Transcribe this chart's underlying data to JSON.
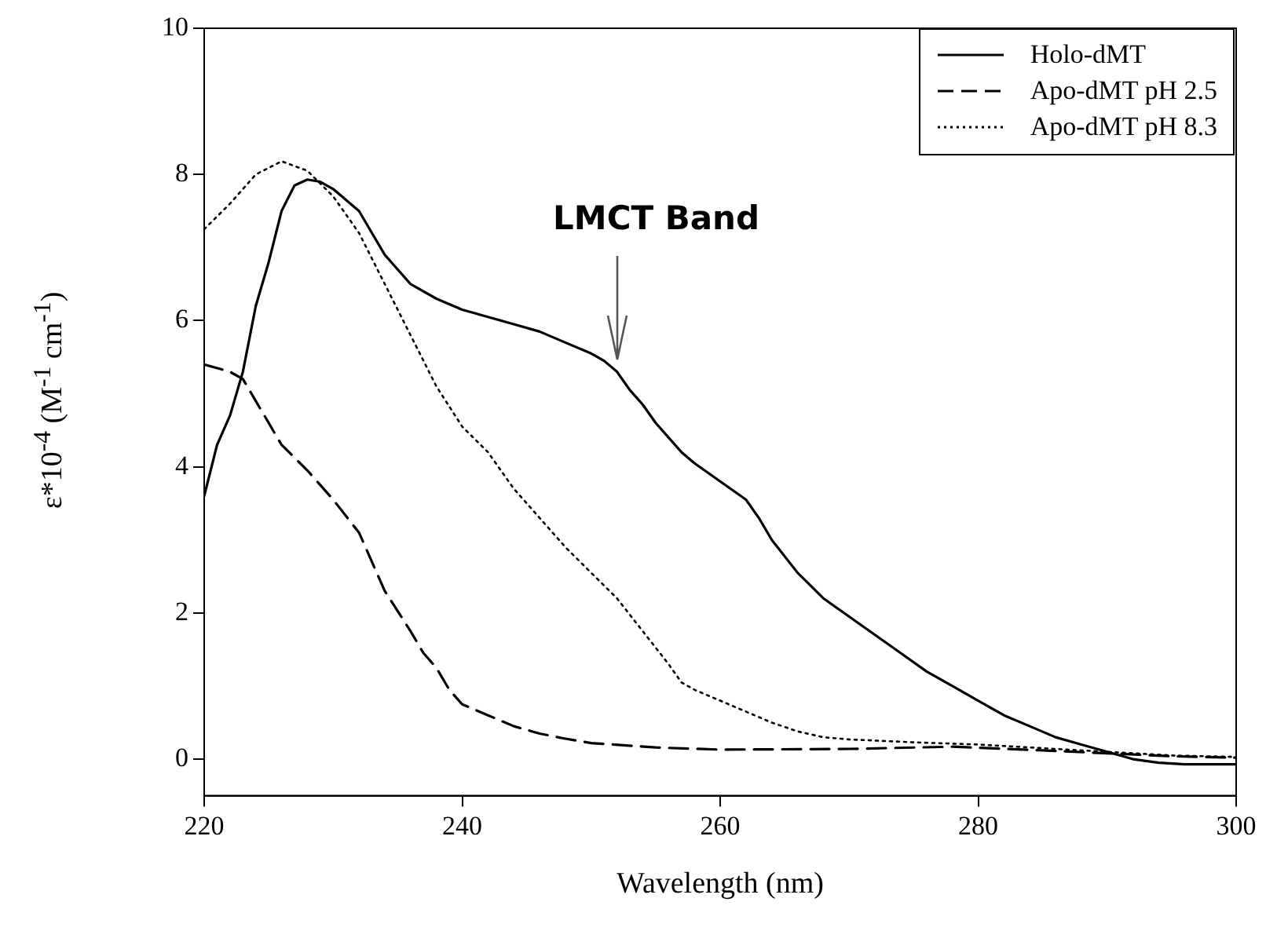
{
  "chart_data": {
    "type": "line",
    "xlabel": "Wavelength (nm)",
    "ylabel": "ε*10$^{-4}$ (M$^{-1}$ cm$^{-1}$)",
    "x": [
      220,
      221,
      222,
      223,
      224,
      225,
      226,
      227,
      228,
      229,
      230,
      231,
      232,
      233,
      234,
      235,
      236,
      238,
      240,
      242,
      244,
      246,
      248,
      250,
      251,
      252,
      253,
      254,
      255,
      256,
      257,
      258,
      260,
      262,
      263,
      264,
      266,
      268,
      270,
      272,
      274,
      276,
      278,
      280,
      282,
      284,
      286,
      288,
      290,
      292,
      294,
      296,
      300
    ],
    "series": [
      {
        "name": "Holo-dMT",
        "color": "#000000",
        "line_style": "solid",
        "values": [
          3.6,
          4.3,
          4.7,
          5.3,
          6.2,
          6.8,
          7.5,
          7.85,
          7.93,
          7.9,
          7.8,
          7.65,
          7.5,
          7.2,
          6.9,
          6.7,
          6.5,
          6.3,
          6.15,
          6.05,
          5.95,
          5.85,
          5.7,
          5.55,
          5.45,
          5.3,
          5.05,
          4.85,
          4.6,
          4.4,
          4.2,
          4.05,
          3.8,
          3.55,
          3.3,
          3.0,
          2.55,
          2.2,
          1.95,
          1.7,
          1.45,
          1.2,
          1.0,
          0.8,
          0.6,
          0.45,
          0.3,
          0.2,
          0.1,
          0.0,
          -0.05,
          -0.07,
          -0.07
        ]
      },
      {
        "name": "Apo-dMT pH 2.5",
        "color": "#000000",
        "line_style": "dashed",
        "x": [
          220,
          222,
          223,
          224,
          225,
          226,
          228,
          230,
          232,
          233,
          234,
          236,
          237,
          238,
          239,
          240,
          242,
          244,
          246,
          248,
          250,
          255,
          260,
          270,
          278,
          285,
          290,
          295,
          300
        ],
        "values": [
          5.4,
          5.3,
          5.2,
          4.9,
          4.6,
          4.3,
          3.95,
          3.55,
          3.1,
          2.7,
          2.3,
          1.75,
          1.45,
          1.25,
          0.95,
          0.75,
          0.6,
          0.45,
          0.35,
          0.28,
          0.22,
          0.16,
          0.13,
          0.14,
          0.17,
          0.12,
          0.08,
          0.04,
          0.02
        ]
      },
      {
        "name": "Apo-dMT pH 8.3",
        "color": "#000000",
        "line_style": "dotted",
        "x": [
          220,
          222,
          224,
          226,
          228,
          230,
          232,
          234,
          236,
          238,
          240,
          242,
          244,
          246,
          248,
          250,
          252,
          254,
          256,
          257,
          258,
          260,
          262,
          264,
          266,
          268,
          270,
          275,
          280,
          285,
          290,
          295,
          300
        ],
        "values": [
          7.25,
          7.6,
          8.0,
          8.18,
          8.05,
          7.7,
          7.2,
          6.5,
          5.8,
          5.1,
          4.55,
          4.2,
          3.7,
          3.3,
          2.9,
          2.55,
          2.2,
          1.75,
          1.3,
          1.05,
          0.95,
          0.8,
          0.65,
          0.5,
          0.38,
          0.3,
          0.27,
          0.23,
          0.2,
          0.15,
          0.1,
          0.05,
          0.03
        ]
      }
    ],
    "xlim": [
      220,
      300
    ],
    "xticks": [
      220,
      240,
      260,
      280,
      300
    ],
    "ylim": [
      -0.5,
      10
    ],
    "yticks": [
      0,
      2,
      4,
      6,
      8,
      10
    ],
    "grid": false,
    "legend": "top right",
    "marker": "none",
    "annotations": [
      {
        "text": "LMCT Band",
        "x": 252,
        "y": 5.3
      }
    ]
  }
}
